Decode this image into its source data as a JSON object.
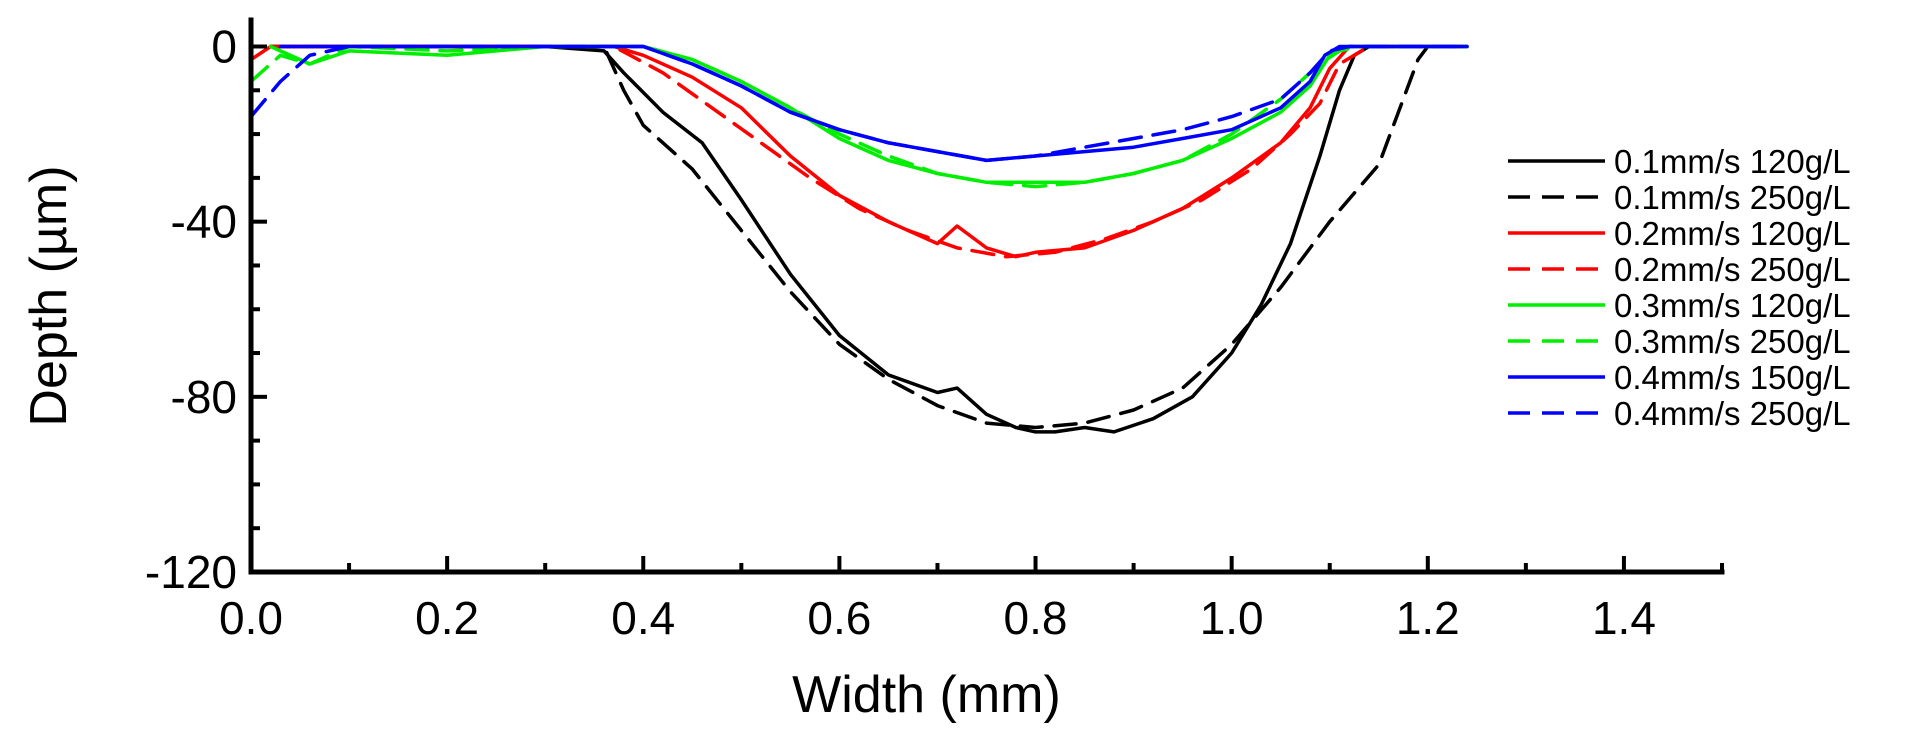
{
  "chart_data": {
    "type": "line",
    "xlabel": "Width (mm)",
    "ylabel": "Depth (µm)",
    "xlim": [
      0.0,
      1.5
    ],
    "ylim": [
      -120,
      5
    ],
    "xticks": [
      "0.0",
      "0.2",
      "0.4",
      "0.6",
      "0.8",
      "1.0",
      "1.2",
      "1.4"
    ],
    "xtick_values": [
      0.0,
      0.2,
      0.4,
      0.6,
      0.8,
      1.0,
      1.2,
      1.4
    ],
    "yticks": [
      "0",
      "-40",
      "-80",
      "-120"
    ],
    "ytick_values": [
      0,
      -40,
      -80,
      -120
    ],
    "grid": false,
    "legend_position": "right",
    "series": [
      {
        "name": "0.1mm/s 120g/L",
        "color": "#000000",
        "dash": "solid",
        "x": [
          0.02,
          0.1,
          0.2,
          0.3,
          0.36,
          0.38,
          0.42,
          0.46,
          0.5,
          0.55,
          0.6,
          0.65,
          0.7,
          0.72,
          0.75,
          0.78,
          0.8,
          0.82,
          0.85,
          0.88,
          0.92,
          0.96,
          1.0,
          1.03,
          1.06,
          1.09,
          1.11,
          1.125,
          1.14,
          1.2,
          1.24
        ],
        "y": [
          0,
          0,
          0,
          0,
          -1,
          -6,
          -15,
          -22,
          -35,
          -52,
          -66,
          -75,
          -79,
          -78,
          -84,
          -87,
          -88,
          -88,
          -87,
          -88,
          -85,
          -80,
          -70,
          -59,
          -45,
          -25,
          -10,
          -2,
          0,
          0,
          0
        ]
      },
      {
        "name": "0.1mm/s 250g/L",
        "color": "#000000",
        "dash": "dashed",
        "x": [
          0.02,
          0.1,
          0.2,
          0.3,
          0.36,
          0.38,
          0.4,
          0.45,
          0.5,
          0.55,
          0.6,
          0.65,
          0.7,
          0.75,
          0.8,
          0.85,
          0.9,
          0.95,
          1.0,
          1.05,
          1.1,
          1.15,
          1.17,
          1.19,
          1.2,
          1.24
        ],
        "y": [
          0,
          0,
          0,
          0,
          0,
          -10,
          -18,
          -28,
          -42,
          -56,
          -68,
          -76,
          -82,
          -86,
          -87,
          -86,
          -83,
          -78,
          -68,
          -55,
          -40,
          -27,
          -15,
          -3,
          0,
          0
        ]
      },
      {
        "name": "0.2mm/s 120g/L",
        "color": "#ff0000",
        "dash": "solid",
        "x": [
          0.02,
          0.1,
          0.2,
          0.3,
          0.37,
          0.4,
          0.45,
          0.5,
          0.55,
          0.6,
          0.65,
          0.7,
          0.72,
          0.75,
          0.78,
          0.8,
          0.85,
          0.9,
          0.95,
          1.0,
          1.05,
          1.08,
          1.1,
          1.12,
          1.15,
          1.24
        ],
        "y": [
          0,
          0,
          0,
          0,
          0,
          -2,
          -7,
          -14,
          -25,
          -34,
          -40,
          -45,
          -41,
          -46,
          -48,
          -47,
          -46,
          -42,
          -37,
          -30,
          -22,
          -14,
          -5,
          0,
          0,
          0
        ]
      },
      {
        "name": "0.2mm/s 250g/L",
        "color": "#ff0000",
        "dash": "dashed",
        "x": [
          0.0,
          0.02,
          0.1,
          0.2,
          0.3,
          0.37,
          0.42,
          0.47,
          0.52,
          0.57,
          0.62,
          0.67,
          0.72,
          0.77,
          0.82,
          0.87,
          0.92,
          0.97,
          1.02,
          1.06,
          1.09,
          1.11,
          1.14,
          1.24
        ],
        "y": [
          -3,
          0,
          0,
          0,
          0,
          0,
          -6,
          -14,
          -22,
          -30,
          -37,
          -42,
          -46,
          -48,
          -47,
          -44,
          -40,
          -35,
          -28,
          -20,
          -13,
          -4,
          0,
          0
        ]
      },
      {
        "name": "0.3mm/s 120g/L",
        "color": "#00ee00",
        "dash": "solid",
        "x": [
          0.02,
          0.06,
          0.1,
          0.2,
          0.3,
          0.4,
          0.45,
          0.5,
          0.55,
          0.6,
          0.65,
          0.7,
          0.75,
          0.8,
          0.85,
          0.9,
          0.95,
          1.0,
          1.05,
          1.08,
          1.1,
          1.12,
          1.24
        ],
        "y": [
          0,
          -4,
          -1,
          -2,
          0,
          0,
          -3,
          -8,
          -14,
          -21,
          -26,
          -29,
          -31,
          -31,
          -31,
          -29,
          -26,
          -21,
          -15,
          -9,
          -2,
          0,
          0
        ]
      },
      {
        "name": "0.3mm/s 250g/L",
        "color": "#00ee00",
        "dash": "dashed",
        "x": [
          0.0,
          0.03,
          0.06,
          0.1,
          0.2,
          0.3,
          0.4,
          0.45,
          0.5,
          0.55,
          0.6,
          0.65,
          0.7,
          0.75,
          0.8,
          0.85,
          0.9,
          0.95,
          1.0,
          1.05,
          1.09,
          1.11,
          1.13,
          1.24
        ],
        "y": [
          -8,
          -2,
          -4,
          0,
          -1,
          0,
          0,
          -3,
          -8,
          -14,
          -20,
          -25,
          -29,
          -31,
          -32,
          -31,
          -29,
          -26,
          -20,
          -12,
          -4,
          -1,
          0,
          0
        ]
      },
      {
        "name": "0.4mm/s 150g/L",
        "color": "#0000ff",
        "dash": "solid",
        "x": [
          0.03,
          0.1,
          0.2,
          0.3,
          0.4,
          0.45,
          0.5,
          0.55,
          0.6,
          0.65,
          0.7,
          0.75,
          0.8,
          0.85,
          0.9,
          0.95,
          1.0,
          1.05,
          1.08,
          1.095,
          1.11,
          1.24
        ],
        "y": [
          0,
          0,
          0,
          0,
          0,
          -4,
          -9,
          -15,
          -19,
          -22,
          -24,
          -26,
          -25,
          -24,
          -23,
          -21,
          -19,
          -14,
          -8,
          -2,
          0,
          0
        ]
      },
      {
        "name": "0.4mm/s 250g/L",
        "color": "#0000ff",
        "dash": "dashed",
        "x": [
          0.0,
          0.03,
          0.06,
          0.1,
          0.2,
          0.3,
          0.4,
          0.45,
          0.5,
          0.55,
          0.6,
          0.65,
          0.7,
          0.75,
          0.8,
          0.85,
          0.9,
          0.95,
          1.0,
          1.05,
          1.08,
          1.1,
          1.12,
          1.24
        ],
        "y": [
          -16,
          -8,
          -2,
          0,
          0,
          0,
          0,
          -4,
          -9,
          -15,
          -19,
          -22,
          -24,
          -26,
          -25,
          -23,
          -21,
          -19,
          -16,
          -12,
          -6,
          -1,
          0,
          0
        ]
      }
    ]
  }
}
